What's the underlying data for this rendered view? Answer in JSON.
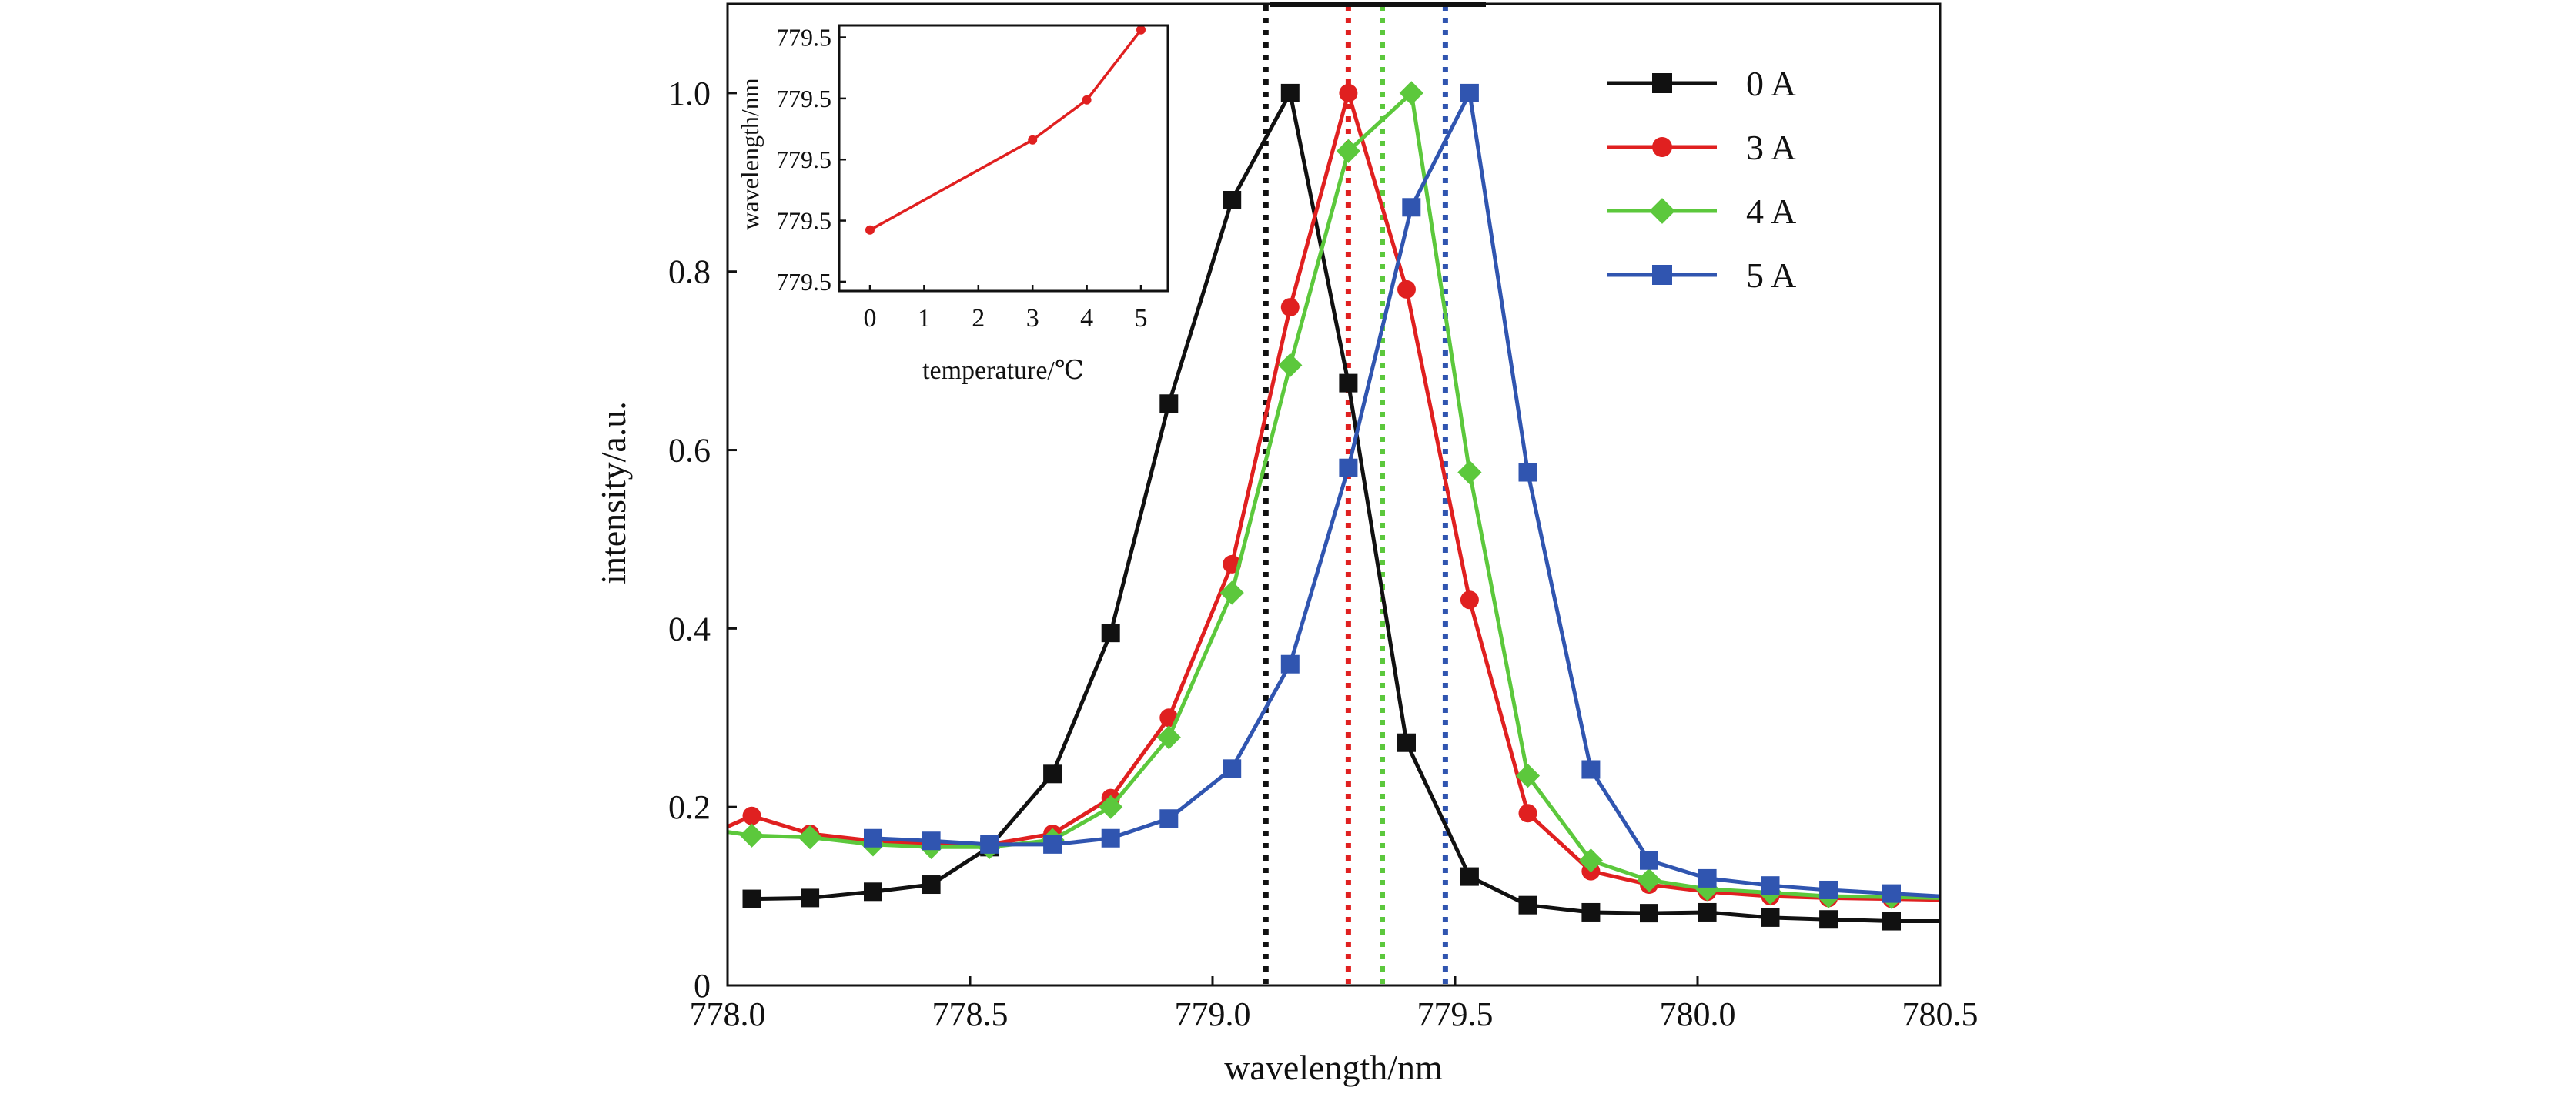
{
  "chart_data": [
    {
      "type": "line",
      "title": "",
      "xlabel": "wavelength/nm",
      "ylabel": "intensity/a.u.",
      "xlim": [
        778.0,
        780.5
      ],
      "ylim": [
        0,
        1.1
      ],
      "x_ticks": [
        "778.0",
        "778.5",
        "779.0",
        "779.5",
        "780.0",
        "780.5"
      ],
      "y_ticks": [
        "0",
        "0.2",
        "0.4",
        "0.6",
        "0.8",
        "1.0"
      ],
      "grid": false,
      "legend_position": "top-right",
      "series": [
        {
          "name": "0 A",
          "color": "#111111",
          "marker": "square",
          "points": [
            [
              778.05,
              0.097
            ],
            [
              778.17,
              0.098
            ],
            [
              778.3,
              0.105
            ],
            [
              778.42,
              0.113
            ],
            [
              778.54,
              0.155
            ],
            [
              778.67,
              0.237
            ],
            [
              778.79,
              0.395
            ],
            [
              778.91,
              0.652
            ],
            [
              779.04,
              0.88
            ],
            [
              779.16,
              1.0
            ],
            [
              779.28,
              0.675
            ],
            [
              779.4,
              0.272
            ],
            [
              779.53,
              0.122
            ],
            [
              779.65,
              0.09
            ],
            [
              779.78,
              0.082
            ],
            [
              779.9,
              0.081
            ],
            [
              780.02,
              0.082
            ],
            [
              780.15,
              0.076
            ],
            [
              780.27,
              0.074
            ],
            [
              780.4,
              0.072
            ],
            [
              780.5,
              0.072
            ]
          ]
        },
        {
          "name": "3 A",
          "color": "#e02020",
          "marker": "circle",
          "points": [
            [
              778.0,
              0.178
            ],
            [
              778.05,
              0.19
            ],
            [
              778.17,
              0.17
            ],
            [
              778.3,
              0.162
            ],
            [
              778.42,
              0.158
            ],
            [
              778.54,
              0.158
            ],
            [
              778.67,
              0.17
            ],
            [
              778.79,
              0.21
            ],
            [
              778.91,
              0.3
            ],
            [
              779.04,
              0.472
            ],
            [
              779.16,
              0.76
            ],
            [
              779.28,
              1.0
            ],
            [
              779.4,
              0.78
            ],
            [
              779.53,
              0.432
            ],
            [
              779.65,
              0.193
            ],
            [
              779.78,
              0.128
            ],
            [
              779.9,
              0.113
            ],
            [
              780.02,
              0.105
            ],
            [
              780.15,
              0.1
            ],
            [
              780.27,
              0.098
            ],
            [
              780.4,
              0.097
            ],
            [
              780.5,
              0.096
            ]
          ]
        },
        {
          "name": "4 A",
          "color": "#5cc83c",
          "marker": "diamond",
          "points": [
            [
              778.0,
              0.172
            ],
            [
              778.05,
              0.168
            ],
            [
              778.17,
              0.166
            ],
            [
              778.3,
              0.158
            ],
            [
              778.42,
              0.155
            ],
            [
              778.54,
              0.155
            ],
            [
              778.67,
              0.163
            ],
            [
              778.79,
              0.2
            ],
            [
              778.91,
              0.278
            ],
            [
              779.04,
              0.44
            ],
            [
              779.16,
              0.695
            ],
            [
              779.28,
              0.935
            ],
            [
              779.41,
              1.0
            ],
            [
              779.53,
              0.575
            ],
            [
              779.65,
              0.235
            ],
            [
              779.78,
              0.14
            ],
            [
              779.9,
              0.118
            ],
            [
              780.02,
              0.108
            ],
            [
              780.15,
              0.104
            ],
            [
              780.27,
              0.1
            ],
            [
              780.4,
              0.099
            ],
            [
              780.5,
              0.098
            ]
          ]
        },
        {
          "name": "5 A",
          "color": "#3055b0",
          "marker": "square",
          "points": [
            [
              778.3,
              0.165
            ],
            [
              778.42,
              0.162
            ],
            [
              778.54,
              0.158
            ],
            [
              778.67,
              0.158
            ],
            [
              778.79,
              0.165
            ],
            [
              778.91,
              0.187
            ],
            [
              779.04,
              0.243
            ],
            [
              779.16,
              0.36
            ],
            [
              779.28,
              0.58
            ],
            [
              779.41,
              0.872
            ],
            [
              779.53,
              1.0
            ],
            [
              779.65,
              0.575
            ],
            [
              779.78,
              0.242
            ],
            [
              779.9,
              0.14
            ],
            [
              780.02,
              0.12
            ],
            [
              780.15,
              0.112
            ],
            [
              780.27,
              0.107
            ],
            [
              780.4,
              0.103
            ],
            [
              780.5,
              0.1
            ]
          ]
        }
      ],
      "vertical_lines": [
        {
          "x": 779.11,
          "color": "#111111"
        },
        {
          "x": 779.28,
          "color": "#e02020"
        },
        {
          "x": 779.35,
          "color": "#5cc83c"
        },
        {
          "x": 779.48,
          "color": "#3055b0"
        }
      ]
    },
    {
      "type": "line",
      "title": "",
      "xlabel": "temperature/℃",
      "ylabel": "wavelength/nm",
      "xlim": [
        -0.5,
        5.5
      ],
      "ylim": [
        0,
        1
      ],
      "x_ticks": [
        "0",
        "1",
        "2",
        "3",
        "4",
        "5"
      ],
      "y_ticks": [
        "779.5",
        "779.5",
        "779.5",
        "779.5",
        "779.5"
      ],
      "grid": false,
      "series": [
        {
          "name": "",
          "color": "#e02020",
          "marker": "circle",
          "x": [
            0,
            3,
            4,
            5
          ],
          "y": [
            0.12,
            0.57,
            0.77,
            1.12
          ]
        }
      ]
    }
  ]
}
